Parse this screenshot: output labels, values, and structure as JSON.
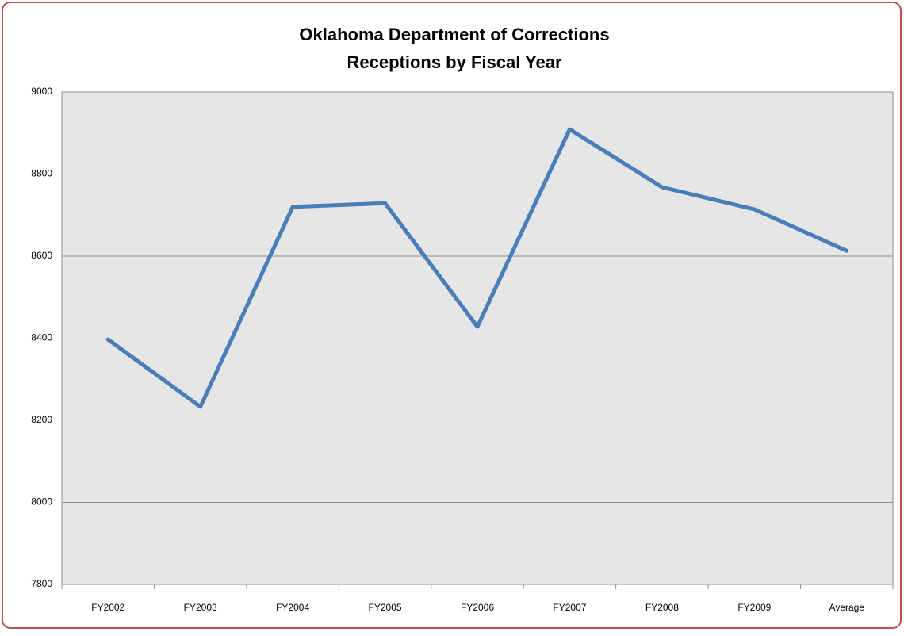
{
  "chart_data": {
    "type": "line",
    "title": "Oklahoma Department of Corrections",
    "subtitle": "Receptions by Fiscal Year",
    "categories": [
      "FY2002",
      "FY2003",
      "FY2004",
      "FY2005",
      "FY2006",
      "FY2007",
      "FY2008",
      "FY2009",
      "Average"
    ],
    "series": [
      {
        "name": "Receptions",
        "color": "#4a7ebb",
        "values": [
          8397,
          8233,
          8720,
          8729,
          8428,
          8909,
          8768,
          8714,
          8613
        ]
      }
    ],
    "ylim": [
      7800,
      9000
    ],
    "yticks": [
      7800,
      8000,
      8200,
      8400,
      8600,
      8800,
      9000
    ],
    "grid_lines": [
      8000,
      8600,
      9000
    ],
    "legend": false
  }
}
